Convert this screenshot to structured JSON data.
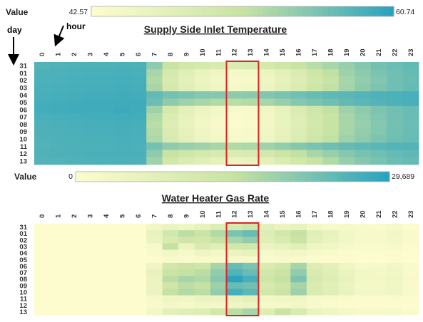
{
  "annotations": {
    "day_label": "day",
    "hour_label": "hour"
  },
  "highlight_color": "#d62728",
  "color_scale": {
    "low": "#fdfccf",
    "mid": "#c8e3a3",
    "high": "#2ba3bf"
  },
  "chart_data": [
    {
      "type": "heatmap",
      "title": "Supply Side Inlet Temperature",
      "legend": {
        "label": "Value",
        "min": 42.57,
        "max": 60.74,
        "min_text": "42.57",
        "max_text": "60.74"
      },
      "hours": [
        "0",
        "1",
        "2",
        "3",
        "4",
        "5",
        "6",
        "7",
        "8",
        "9",
        "10",
        "11",
        "12",
        "13",
        "14",
        "15",
        "16",
        "17",
        "18",
        "19",
        "20",
        "21",
        "22",
        "23"
      ],
      "days": [
        "31",
        "01",
        "02",
        "03",
        "04",
        "05",
        "06",
        "07",
        "08",
        "09",
        "10",
        "11",
        "12",
        "13"
      ],
      "highlight_hours": [
        12,
        13
      ],
      "values": [
        [
          58.5,
          58.6,
          58.7,
          58.8,
          58.8,
          58.9,
          58.8,
          55.0,
          51.5,
          50.0,
          49.5,
          49.0,
          48.5,
          48.6,
          49.5,
          50.5,
          51.5,
          52.5,
          53.5,
          54.5,
          55.5,
          56.5,
          57.0,
          57.5
        ],
        [
          58.7,
          58.8,
          58.9,
          59.0,
          59.0,
          59.1,
          59.0,
          53.5,
          49.5,
          47.5,
          46.0,
          45.0,
          44.0,
          44.2,
          45.5,
          47.0,
          48.5,
          50.5,
          52.0,
          54.0,
          55.0,
          56.0,
          56.8,
          57.3
        ],
        [
          58.8,
          58.9,
          59.0,
          59.1,
          59.1,
          59.2,
          59.1,
          53.0,
          49.0,
          47.0,
          45.5,
          44.5,
          43.5,
          43.8,
          45.0,
          46.5,
          48.0,
          50.0,
          51.5,
          53.5,
          54.8,
          55.8,
          56.7,
          57.2
        ],
        [
          58.9,
          59.0,
          59.1,
          59.2,
          59.2,
          59.3,
          59.2,
          53.5,
          49.5,
          47.5,
          46.0,
          45.0,
          44.0,
          44.2,
          45.5,
          47.0,
          48.5,
          50.5,
          52.0,
          53.8,
          55.0,
          56.0,
          56.8,
          57.3
        ],
        [
          59.0,
          59.1,
          59.2,
          59.3,
          59.3,
          59.4,
          59.3,
          57.5,
          56.5,
          56.0,
          55.5,
          55.5,
          55.0,
          55.2,
          55.8,
          56.2,
          56.8,
          57.2,
          57.6,
          58.0,
          58.3,
          58.6,
          58.8,
          59.0
        ],
        [
          59.2,
          59.3,
          59.4,
          59.5,
          59.5,
          59.6,
          59.5,
          57.0,
          55.0,
          54.0,
          53.5,
          53.0,
          52.5,
          52.8,
          53.5,
          54.5,
          55.5,
          56.2,
          56.8,
          57.5,
          58.0,
          58.4,
          58.7,
          59.0
        ],
        [
          59.3,
          59.4,
          59.5,
          59.6,
          59.6,
          59.7,
          59.6,
          54.0,
          49.5,
          47.0,
          45.5,
          44.5,
          43.5,
          43.8,
          45.0,
          46.5,
          48.5,
          50.5,
          52.0,
          54.0,
          55.0,
          56.0,
          56.8,
          57.2
        ],
        [
          59.0,
          59.1,
          59.2,
          59.3,
          59.3,
          59.4,
          59.3,
          53.0,
          48.5,
          46.5,
          45.0,
          44.0,
          43.0,
          43.2,
          44.5,
          46.0,
          48.0,
          50.0,
          51.5,
          53.5,
          54.8,
          55.8,
          56.6,
          57.1
        ],
        [
          58.8,
          58.9,
          59.0,
          59.1,
          59.1,
          59.2,
          59.1,
          52.5,
          48.0,
          46.0,
          44.5,
          43.5,
          42.9,
          43.0,
          44.5,
          46.0,
          47.8,
          49.8,
          51.5,
          53.5,
          54.5,
          55.5,
          56.5,
          57.0
        ],
        [
          58.7,
          58.8,
          58.9,
          59.0,
          59.0,
          59.1,
          59.0,
          52.8,
          48.5,
          46.5,
          45.0,
          44.0,
          43.2,
          43.5,
          44.8,
          46.2,
          48.0,
          50.0,
          51.6,
          53.6,
          54.7,
          55.7,
          56.6,
          57.1
        ],
        [
          58.6,
          58.7,
          58.8,
          58.9,
          58.9,
          59.0,
          58.9,
          53.2,
          49.0,
          47.0,
          45.5,
          44.5,
          43.5,
          43.8,
          45.0,
          46.5,
          48.5,
          50.5,
          52.0,
          54.0,
          55.0,
          56.0,
          56.8,
          57.2
        ],
        [
          58.5,
          58.6,
          58.7,
          58.8,
          58.8,
          58.9,
          58.8,
          56.5,
          55.0,
          54.5,
          54.0,
          53.5,
          53.0,
          53.2,
          54.0,
          54.8,
          55.5,
          56.2,
          56.8,
          57.3,
          57.7,
          58.0,
          58.3,
          58.5
        ],
        [
          58.6,
          58.7,
          58.8,
          58.9,
          58.9,
          59.0,
          58.9,
          55.0,
          51.5,
          50.5,
          49.5,
          49.0,
          48.5,
          48.8,
          49.8,
          51.0,
          52.0,
          53.5,
          54.5,
          55.5,
          56.3,
          56.8,
          57.3,
          57.7
        ],
        [
          58.4,
          58.5,
          58.6,
          58.7,
          58.7,
          58.8,
          58.7,
          54.0,
          50.0,
          48.5,
          47.5,
          46.5,
          45.5,
          45.8,
          47.0,
          48.5,
          50.0,
          51.5,
          53.0,
          54.5,
          55.5,
          56.2,
          57.0,
          57.3
        ]
      ]
    },
    {
      "type": "heatmap",
      "title": "Water Heater Gas Rate",
      "legend": {
        "label": "Value",
        "min": 0,
        "max": 29689,
        "min_text": "0",
        "max_text": "29,689"
      },
      "hours": [
        "0",
        "1",
        "2",
        "3",
        "4",
        "5",
        "6",
        "7",
        "8",
        "9",
        "10",
        "11",
        "12",
        "13",
        "14",
        "15",
        "16",
        "17",
        "18",
        "19",
        "20",
        "21",
        "22",
        "23"
      ],
      "days": [
        "31",
        "01",
        "02",
        "03",
        "04",
        "05",
        "06",
        "07",
        "08",
        "09",
        "10",
        "11",
        "12",
        "13"
      ],
      "highlight_hours": [
        12,
        13
      ],
      "values": [
        [
          0,
          0,
          0,
          0,
          0,
          0,
          0,
          3000,
          5000,
          4000,
          6000,
          9000,
          11000,
          13000,
          7000,
          5000,
          6000,
          3000,
          2000,
          1500,
          1000,
          800,
          1500,
          500
        ],
        [
          0,
          0,
          0,
          0,
          0,
          0,
          0,
          6000,
          12000,
          16000,
          14000,
          17000,
          22000,
          24000,
          9000,
          12000,
          15000,
          8000,
          6000,
          3000,
          2000,
          2000,
          3000,
          1000
        ],
        [
          0,
          0,
          0,
          0,
          0,
          0,
          0,
          5000,
          10000,
          13000,
          12000,
          15000,
          18000,
          20000,
          8000,
          10000,
          14000,
          7000,
          5000,
          3000,
          1500,
          1500,
          2500,
          1000
        ],
        [
          0,
          0,
          0,
          0,
          0,
          0,
          0,
          2000,
          15000,
          5000,
          10000,
          8000,
          12000,
          12000,
          5000,
          6000,
          8000,
          4000,
          3000,
          2000,
          1000,
          1000,
          1500,
          500
        ],
        [
          0,
          0,
          0,
          0,
          0,
          0,
          0,
          1000,
          3000,
          2000,
          4000,
          3000,
          5000,
          6000,
          2000,
          2500,
          3000,
          1500,
          1000,
          500,
          500,
          300,
          500,
          200
        ],
        [
          0,
          0,
          0,
          0,
          0,
          0,
          0,
          500,
          1000,
          800,
          1200,
          1000,
          1500,
          2000,
          800,
          1000,
          1200,
          600,
          400,
          300,
          200,
          200,
          300,
          100
        ],
        [
          0,
          0,
          0,
          0,
          0,
          0,
          0,
          4000,
          12000,
          14000,
          13000,
          18000,
          24000,
          22000,
          10000,
          12000,
          18000,
          9000,
          7000,
          4000,
          2000,
          2000,
          3000,
          1000
        ],
        [
          0,
          0,
          0,
          0,
          0,
          0,
          0,
          6000,
          14000,
          15000,
          16000,
          20000,
          26000,
          24000,
          12000,
          14000,
          20000,
          10000,
          8000,
          5000,
          3000,
          2500,
          3500,
          1200
        ],
        [
          0,
          0,
          0,
          0,
          0,
          0,
          0,
          5000,
          16000,
          18000,
          17000,
          21000,
          29689,
          27000,
          13000,
          15000,
          22000,
          11000,
          9000,
          6000,
          3000,
          3000,
          4000,
          1500
        ],
        [
          0,
          0,
          0,
          0,
          0,
          0,
          0,
          4500,
          13000,
          16000,
          15000,
          19000,
          24000,
          23000,
          11000,
          13000,
          18000,
          9500,
          7500,
          5000,
          2500,
          2500,
          3500,
          1200
        ],
        [
          0,
          0,
          0,
          0,
          0,
          0,
          0,
          5000,
          15000,
          17000,
          16000,
          20000,
          27000,
          25000,
          12000,
          14000,
          19000,
          10000,
          8000,
          5500,
          3000,
          2800,
          3800,
          1300
        ],
        [
          0,
          0,
          0,
          0,
          0,
          0,
          0,
          1500,
          4000,
          3500,
          5000,
          4500,
          6000,
          7000,
          3000,
          3500,
          4000,
          2000,
          1500,
          800,
          600,
          500,
          800,
          300
        ],
        [
          0,
          0,
          0,
          0,
          0,
          0,
          0,
          1000,
          2500,
          2000,
          3000,
          2500,
          4000,
          4500,
          2000,
          2200,
          2800,
          1200,
          900,
          500,
          400,
          300,
          500,
          200
        ],
        [
          0,
          0,
          0,
          0,
          0,
          0,
          0,
          3000,
          7000,
          8000,
          9000,
          12000,
          16000,
          18000,
          9000,
          14000,
          10000,
          5000,
          4000,
          2500,
          1500,
          1500,
          2000,
          800
        ]
      ]
    }
  ]
}
